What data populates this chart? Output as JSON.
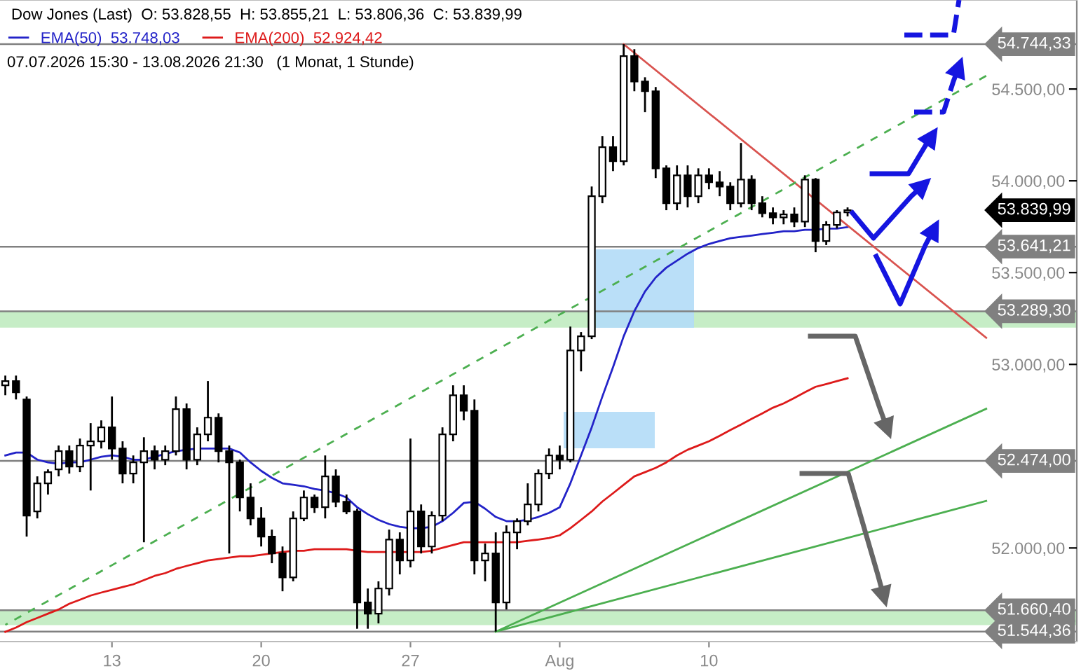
{
  "chart_data": {
    "type": "candlestick",
    "title": "Dow Jones (Last)  O: 53.828,55  H: 53.855,21  L: 53.806,36  C: 53.839,99",
    "subtitle": "07.07.2026 15:30 - 13.08.2026 21:30   (1 Monat, 1 Stunde)",
    "categories": [
      null,
      null,
      null,
      null,
      null,
      null,
      null,
      null,
      null,
      null,
      "13",
      null,
      null,
      null,
      null,
      null,
      null,
      null,
      null,
      null,
      null,
      null,
      null,
      null,
      "20",
      null,
      null,
      null,
      null,
      null,
      null,
      null,
      null,
      null,
      null,
      null,
      null,
      null,
      "27",
      null,
      null,
      null,
      null,
      null,
      null,
      null,
      null,
      null,
      null,
      null,
      null,
      null,
      "Aug",
      null,
      null,
      null,
      null,
      null,
      null,
      null,
      null,
      null,
      null,
      null,
      null,
      null,
      "10",
      null,
      null,
      null,
      null,
      null,
      null,
      null,
      null,
      null,
      null,
      null,
      null,
      null,
      null,
      null,
      null,
      null,
      null,
      null,
      null,
      null,
      null,
      null,
      null,
      null,
      null,
      null,
      null,
      null,
      null,
      null,
      null,
      null,
      null
    ],
    "ohlc": [
      [
        52886,
        52939,
        52832,
        52909
      ],
      [
        52909,
        52939,
        52809,
        52848
      ],
      [
        52809,
        52825,
        52062,
        52176
      ],
      [
        52199,
        52390,
        52161,
        52352
      ],
      [
        52352,
        52428,
        52291,
        52413
      ],
      [
        52428,
        52558,
        52390,
        52527
      ],
      [
        52527,
        52558,
        52405,
        52443
      ],
      [
        52443,
        52596,
        52413,
        52558
      ],
      [
        52558,
        52680,
        52313,
        52581
      ],
      [
        52581,
        52695,
        52542,
        52657
      ],
      [
        52657,
        52825,
        52481,
        52542
      ],
      [
        52542,
        52581,
        52352,
        52405
      ],
      [
        52405,
        52504,
        52352,
        52466
      ],
      [
        52466,
        52603,
        52031,
        52527
      ],
      [
        52527,
        52558,
        52428,
        52481
      ],
      [
        52481,
        52558,
        52451,
        52527
      ],
      [
        52527,
        52825,
        52504,
        52756
      ],
      [
        52756,
        52787,
        52428,
        52481
      ],
      [
        52481,
        52657,
        52451,
        52619
      ],
      [
        52619,
        52909,
        52581,
        52710
      ],
      [
        52710,
        52733,
        52466,
        52527
      ],
      [
        52527,
        52558,
        51970,
        52466
      ],
      [
        52466,
        52481,
        52199,
        52275
      ],
      [
        52275,
        52352,
        52123,
        52161
      ],
      [
        52161,
        52222,
        52008,
        52062
      ],
      [
        52062,
        52100,
        51917,
        51970
      ],
      [
        51970,
        52008,
        51764,
        51840
      ],
      [
        51840,
        52199,
        51818,
        52161
      ],
      [
        52161,
        52313,
        52146,
        52275
      ],
      [
        52275,
        52291,
        52191,
        52222
      ],
      [
        52222,
        52504,
        52161,
        52390
      ],
      [
        52390,
        52428,
        52222,
        52252
      ],
      [
        52252,
        52291,
        52184,
        52199
      ],
      [
        52199,
        52214,
        51560,
        51703
      ],
      [
        51703,
        51779,
        51560,
        51642
      ],
      [
        51642,
        51818,
        51589,
        51779
      ],
      [
        51779,
        52100,
        51741,
        52046
      ],
      [
        52046,
        52085,
        51856,
        51932
      ],
      [
        51932,
        52596,
        51894,
        52199
      ],
      [
        52199,
        52237,
        51970,
        52008
      ],
      [
        52008,
        52199,
        51970,
        52176
      ],
      [
        52176,
        52657,
        52146,
        52619
      ],
      [
        52619,
        52886,
        52581,
        52832
      ],
      [
        52832,
        52886,
        52695,
        52748
      ],
      [
        52748,
        52809,
        51856,
        51932
      ],
      [
        51932,
        52024,
        51818,
        51970
      ],
      [
        51970,
        52085,
        51544.36,
        51703
      ],
      [
        51703,
        52123,
        51665,
        52085
      ],
      [
        52085,
        52161,
        51993,
        52146
      ],
      [
        52146,
        52352,
        52123,
        52237
      ],
      [
        52237,
        52428,
        52199,
        52405
      ],
      [
        52405,
        52542,
        52375,
        52504
      ],
      [
        52504,
        52558,
        52428,
        52481
      ],
      [
        52481,
        53206,
        52466,
        53076
      ],
      [
        53076,
        53176,
        52962,
        53153
      ],
      [
        53153,
        53969,
        53138,
        53916
      ],
      [
        53916,
        54244,
        53878,
        54183
      ],
      [
        54183,
        54244,
        54053,
        54107
      ],
      [
        54107,
        54744.33,
        54084,
        54679
      ],
      [
        54679,
        54717,
        54488,
        54541
      ],
      [
        54541,
        54564,
        54374,
        54488
      ],
      [
        54488,
        54511,
        54015,
        54068
      ],
      [
        54068,
        54084,
        53840,
        53878
      ],
      [
        53878,
        54084,
        53840,
        54030
      ],
      [
        54030,
        54084,
        53855,
        53916
      ],
      [
        53916,
        54068,
        53878,
        54030
      ],
      [
        54030,
        54068,
        53954,
        53992
      ],
      [
        53992,
        54053,
        53916,
        53969
      ],
      [
        53969,
        53992,
        53840,
        53878
      ],
      [
        53878,
        54206,
        53855,
        54007
      ],
      [
        54007,
        54030,
        53840,
        53878
      ],
      [
        53878,
        53916,
        53801,
        53824
      ],
      [
        53824,
        53855,
        53763,
        53801
      ],
      [
        53801,
        53840,
        53763,
        53817
      ],
      [
        53817,
        53855,
        53748,
        53778
      ],
      [
        53778,
        54030,
        53748,
        54007
      ],
      [
        54007,
        54015,
        53611,
        53672
      ],
      [
        53672,
        53780,
        53650,
        53760
      ],
      [
        53760,
        53840,
        53740,
        53828
      ],
      [
        53828.55,
        53855.21,
        53806.36,
        53839.99
      ],
      null,
      null,
      null,
      null,
      null,
      null,
      null,
      null,
      null,
      null,
      null,
      null,
      null,
      null,
      null,
      null,
      null,
      null,
      null,
      null,
      null
    ],
    "series": [
      {
        "name": "EMA(50)  53.748,03",
        "type": "line",
        "color": "#2323c8",
        "values": [
          52504,
          52520,
          52520,
          52481,
          52466,
          52459,
          52466,
          52466,
          52481,
          52497,
          52504,
          52497,
          52481,
          52481,
          52497,
          52512,
          52527,
          52535,
          52542,
          52542,
          52542,
          52542,
          52520,
          52466,
          52420,
          52382,
          52352,
          52344,
          52336,
          52321,
          52313,
          52298,
          52275,
          52222,
          52184,
          52153,
          52130,
          52115,
          52108,
          52108,
          52115,
          52146,
          52191,
          52245,
          52252,
          52214,
          52169,
          52146,
          52146,
          52153,
          52169,
          52191,
          52222,
          52352,
          52504,
          52657,
          52825,
          52985,
          53153,
          53290,
          53397,
          53473,
          53527,
          53565,
          53603,
          53634,
          53656,
          53672,
          53687,
          53695,
          53702,
          53710,
          53717,
          53725,
          53725,
          53733,
          53733,
          53740,
          53740,
          53748.03,
          null,
          null,
          null,
          null,
          null,
          null,
          null,
          null,
          null,
          null,
          null,
          null,
          null,
          null,
          null,
          null,
          null,
          null,
          null,
          null,
          null
        ]
      },
      {
        "name": "EMA(200)  52.924,42",
        "type": "line",
        "color": "#dd1a1a",
        "values": [
          51543,
          51566,
          51596,
          51619,
          51642,
          51665,
          51696,
          51718,
          51741,
          51757,
          51772,
          51787,
          51802,
          51825,
          51848,
          51863,
          51886,
          51902,
          51917,
          51932,
          51940,
          51947,
          51955,
          51955,
          51963,
          51970,
          51978,
          51985,
          51985,
          51993,
          51993,
          51993,
          51993,
          51985,
          51978,
          51978,
          51978,
          51978,
          51978,
          51978,
          51985,
          52001,
          52016,
          52031,
          52031,
          52031,
          52031,
          52031,
          52031,
          52039,
          52046,
          52054,
          52069,
          52108,
          52153,
          52199,
          52253,
          52298,
          52344,
          52390,
          52413,
          52436,
          52466,
          52504,
          52535,
          52558,
          52581,
          52611,
          52642,
          52672,
          52703,
          52733,
          52764,
          52787,
          52817,
          52848,
          52878,
          52893,
          52909,
          52924.42,
          null,
          null,
          null,
          null,
          null,
          null,
          null,
          null,
          null,
          null,
          null,
          null,
          null,
          null,
          null,
          null,
          null,
          null,
          null,
          null,
          null
        ]
      },
      {
        "type": "line",
        "color": "#d9534f",
        "values": [
          null,
          null,
          null,
          null,
          null,
          null,
          null,
          null,
          null,
          null,
          null,
          null,
          null,
          null,
          null,
          null,
          null,
          null,
          null,
          null,
          null,
          null,
          null,
          null,
          null,
          null,
          null,
          null,
          null,
          null,
          null,
          null,
          null,
          null,
          null,
          null,
          null,
          null,
          null,
          null,
          null,
          null,
          null,
          null,
          null,
          null,
          null,
          null,
          null,
          null,
          null,
          null,
          null,
          null,
          null,
          null,
          null,
          null,
          54744,
          null,
          null,
          null,
          null,
          null,
          null,
          null,
          null,
          null,
          null,
          null,
          null,
          null,
          null,
          null,
          null,
          null,
          null,
          null,
          null,
          null,
          null,
          null,
          null,
          null,
          null,
          null,
          null,
          null,
          null,
          null,
          null,
          null,
          53145,
          null,
          null,
          null,
          null,
          null,
          null,
          null,
          null
        ]
      },
      {
        "type": "line",
        "color": "#4caf50",
        "line_style": "dashed",
        "values": [
          51581,
          null,
          null,
          null,
          null,
          null,
          null,
          null,
          null,
          null,
          null,
          null,
          null,
          null,
          null,
          null,
          null,
          null,
          null,
          null,
          null,
          null,
          null,
          null,
          null,
          null,
          null,
          null,
          null,
          null,
          null,
          null,
          null,
          null,
          null,
          null,
          null,
          null,
          null,
          null,
          null,
          null,
          null,
          null,
          null,
          null,
          null,
          null,
          null,
          null,
          null,
          null,
          null,
          null,
          null,
          null,
          null,
          null,
          null,
          null,
          null,
          null,
          null,
          null,
          null,
          null,
          null,
          null,
          null,
          null,
          null,
          null,
          null,
          null,
          null,
          null,
          null,
          null,
          null,
          null,
          null,
          null,
          null,
          null,
          null,
          null,
          null,
          null,
          null,
          null,
          null,
          null,
          54572,
          null,
          null,
          null,
          null,
          null,
          null,
          null,
          null
        ]
      },
      {
        "type": "line",
        "color": "#4caf50",
        "values": [
          null,
          null,
          null,
          null,
          null,
          null,
          null,
          null,
          null,
          null,
          null,
          null,
          null,
          null,
          null,
          null,
          null,
          null,
          null,
          null,
          null,
          null,
          null,
          null,
          null,
          null,
          null,
          null,
          null,
          null,
          null,
          null,
          null,
          null,
          null,
          null,
          null,
          null,
          null,
          null,
          null,
          null,
          null,
          null,
          null,
          null,
          51544,
          null,
          null,
          null,
          null,
          null,
          null,
          null,
          null,
          null,
          null,
          null,
          null,
          null,
          null,
          null,
          null,
          null,
          null,
          null,
          null,
          null,
          null,
          null,
          null,
          null,
          null,
          null,
          null,
          null,
          null,
          null,
          null,
          null,
          null,
          null,
          null,
          null,
          null,
          null,
          null,
          null,
          null,
          null,
          null,
          null,
          52758,
          null,
          null,
          null,
          null,
          null,
          null,
          null,
          null
        ]
      },
      {
        "type": "line",
        "color": "#4caf50",
        "values": [
          null,
          null,
          null,
          null,
          null,
          null,
          null,
          null,
          null,
          null,
          null,
          null,
          null,
          null,
          null,
          null,
          null,
          null,
          null,
          null,
          null,
          null,
          null,
          null,
          null,
          null,
          null,
          null,
          null,
          null,
          null,
          null,
          null,
          null,
          null,
          null,
          null,
          null,
          null,
          null,
          null,
          null,
          null,
          null,
          null,
          null,
          51544,
          null,
          null,
          null,
          null,
          null,
          null,
          null,
          null,
          null,
          null,
          null,
          null,
          null,
          null,
          null,
          null,
          null,
          null,
          null,
          null,
          null,
          null,
          null,
          null,
          null,
          null,
          null,
          null,
          null,
          null,
          null,
          null,
          null,
          null,
          null,
          null,
          null,
          null,
          null,
          null,
          null,
          null,
          null,
          null,
          null,
          52256,
          null,
          null,
          null,
          null,
          null,
          null,
          null,
          null
        ]
      }
    ],
    "ylim": [
      51490,
      54985
    ],
    "yticks": [
      {
        "value": 52000,
        "label": "52.000,00"
      },
      {
        "value": 53000,
        "label": "53.000,00"
      },
      {
        "value": 53500,
        "label": "53.500,00"
      },
      {
        "value": 54000,
        "label": "54.000,00"
      },
      {
        "value": 54500,
        "label": "54.500,00"
      }
    ],
    "ref_lines": [
      {
        "axis": "y",
        "value": 54744.33,
        "label": "54.744,33",
        "color": "#808080"
      },
      {
        "axis": "y",
        "value": 53641.21,
        "label": "53.641,21",
        "color": "#808080"
      },
      {
        "axis": "y",
        "value": 53289.3,
        "label": "53.289,30",
        "color": "#808080"
      },
      {
        "axis": "y",
        "value": 52474.0,
        "label": "52.474,00",
        "color": "#808080"
      },
      {
        "axis": "y",
        "value": 51660.4,
        "label": "51.660,40",
        "color": "#808080"
      },
      {
        "axis": "y",
        "value": 51544.36,
        "label": "51.544,36",
        "color": "#808080"
      }
    ],
    "bands": [
      {
        "axis": "y",
        "from": 53200,
        "to": 53289.3,
        "color": "#c6edc6"
      },
      {
        "axis": "y",
        "from": 51580,
        "to": 51660.4,
        "color": "#c6edc6"
      }
    ],
    "annotations": [
      "53.839,99"
    ],
    "legend": "top left"
  }
}
